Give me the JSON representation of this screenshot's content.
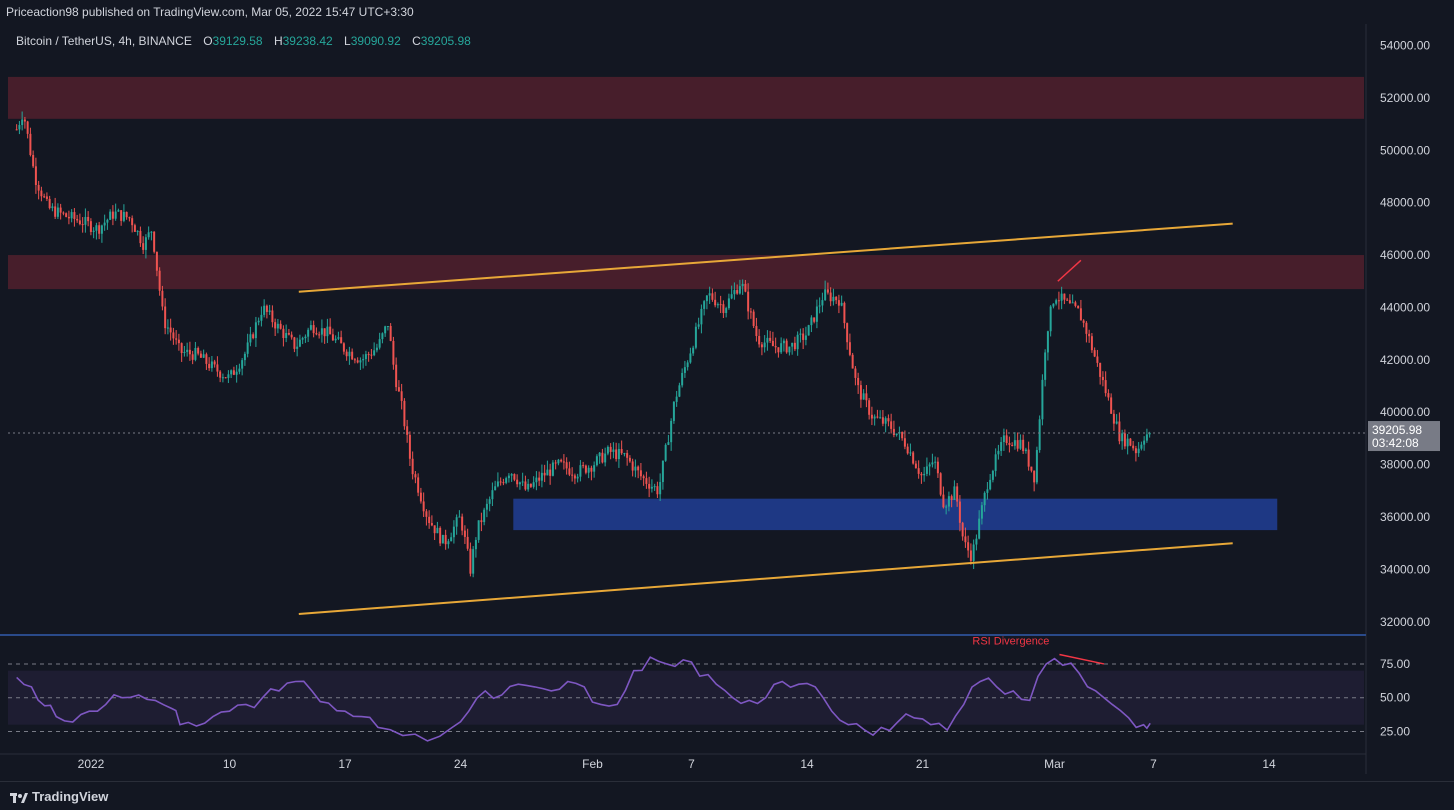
{
  "header": {
    "published": "Priceaction98 published on TradingView.com, Mar 05, 2022 15:47 UTC+3:30"
  },
  "symbol": {
    "name": "Bitcoin / TetherUS, 4h, BINANCE",
    "open_label": "O",
    "open": "39129.58",
    "high_label": "H",
    "high": "39238.42",
    "low_label": "L",
    "low": "39090.92",
    "close_label": "C",
    "close": "39205.98"
  },
  "last_price": {
    "price": "39205.98",
    "countdown": "03:42:08"
  },
  "footer": {
    "brand": "TradingView"
  },
  "colors": {
    "background": "#131722",
    "up": "#26a69a",
    "down": "#ef5350",
    "resistance_zone": "#4a1f2c",
    "support_zone": "#1f3a8a",
    "channel": "#e8a838",
    "rsi": "#7e57c2",
    "annotation": "#f23645"
  },
  "chart_data": [
    {
      "type": "candlestick",
      "title": "Bitcoin / TetherUS, 4h, BINANCE",
      "ylim": [
        31000,
        54400
      ],
      "y_ticks": [
        32000,
        34000,
        36000,
        38000,
        40000,
        42000,
        44000,
        46000,
        48000,
        50000,
        52000,
        54000
      ],
      "y_tick_labels": [
        "32000.00",
        "34000.00",
        "36000.00",
        "38000.00",
        "40000.00",
        "42000.00",
        "44000.00",
        "46000.00",
        "48000.00",
        "50000.00",
        "52000.00",
        "54000.00"
      ],
      "x_tick_labels": [
        "2022",
        "10",
        "17",
        "24",
        "Feb",
        "7",
        "14",
        "21",
        "Mar",
        "7",
        "14"
      ],
      "x_tick_days": [
        0,
        9,
        16,
        23,
        31,
        37,
        44,
        51,
        59,
        65,
        72
      ],
      "price_path_days": [
        -3.9,
        -3.5,
        -2.8,
        -2.0,
        -1.0,
        0.0,
        1.0,
        2.0,
        3.0,
        3.8,
        4.3,
        5.0,
        5.5,
        6.0,
        7.0,
        8.0,
        9.0,
        10.0,
        11.0,
        12.0,
        13.0,
        14.0,
        15.0,
        16.0,
        17.0,
        18.0,
        18.6,
        19.0,
        19.5,
        20.0,
        21.0,
        22.0,
        23.0,
        23.6,
        24.0,
        25.0,
        26.0,
        27.0,
        28.0,
        29.0,
        30.0,
        31.0,
        32.0,
        33.0,
        34.0,
        35.0,
        36.0,
        37.0,
        38.0,
        39.0,
        40.0,
        41.0,
        42.0,
        43.0,
        44.0,
        45.0,
        46.0,
        47.0,
        48.0,
        49.0,
        50.0,
        51.0,
        51.7,
        52.3,
        53.0,
        53.5,
        54.0,
        55.0,
        56.0,
        57.0,
        57.8,
        58.5,
        59.0,
        59.6,
        60.0,
        60.5,
        61.0,
        61.5,
        62.0,
        62.5,
        63.0,
        63.5,
        64.0,
        64.4,
        64.8
      ],
      "price_path_values": [
        50800,
        51500,
        49000,
        47800,
        47500,
        47300,
        47000,
        47600,
        47400,
        46400,
        47000,
        43500,
        43000,
        42300,
        42200,
        41700,
        41300,
        42300,
        44000,
        43200,
        42500,
        43300,
        43000,
        42400,
        42000,
        42500,
        43400,
        41500,
        40000,
        38000,
        36000,
        35000,
        36000,
        34000,
        35500,
        37000,
        37800,
        37000,
        37600,
        38000,
        37700,
        38000,
        38500,
        38300,
        37500,
        37000,
        40500,
        42500,
        44500,
        44000,
        45000,
        42800,
        42500,
        42500,
        43000,
        44500,
        44300,
        41000,
        39800,
        39500,
        38800,
        37500,
        38200,
        36500,
        37000,
        35000,
        34500,
        37500,
        39000,
        38800,
        37500,
        43000,
        44500,
        44200,
        44000,
        43800,
        43000,
        42000,
        41000,
        40000,
        39000,
        38900,
        38500,
        39100,
        39206
      ],
      "resistance_zones": [
        [
          51200,
          52800
        ],
        [
          44700,
          46000
        ]
      ],
      "support_zone": [
        35500,
        36700
      ],
      "support_zone_days": [
        26.2,
        72.5
      ],
      "channel_upper": {
        "from_day": 13.2,
        "from_value": 44600,
        "to_day": 69.8,
        "to_value": 47200
      },
      "channel_lower": {
        "from_day": 13.2,
        "from_value": 32300,
        "to_day": 69.8,
        "to_value": 35000
      },
      "divergence_price_line": {
        "from_day": 59.2,
        "from_value": 45000,
        "to_day": 60.6,
        "to_value": 45800
      }
    },
    {
      "type": "line",
      "series": [
        {
          "name": "RSI",
          "values": [
            65,
            58,
            44,
            36,
            32,
            40,
            45,
            50,
            52,
            48,
            42,
            30,
            29,
            36,
            40,
            45,
            50,
            55,
            62,
            55,
            46,
            40,
            36,
            28,
            22,
            18,
            28,
            40,
            55,
            52,
            60,
            58,
            55,
            62,
            58,
            45,
            45,
            70,
            80,
            75,
            78,
            66,
            60,
            50,
            48,
            50,
            62,
            60,
            58,
            40,
            30,
            26,
            28,
            32,
            35,
            30,
            26,
            45,
            62,
            58,
            55,
            48,
            75,
            74,
            68,
            55,
            45,
            35,
            30,
            31
          ]
        }
      ],
      "x_days": [
        -3.9,
        -3.0,
        -2.2,
        -1.5,
        -0.5,
        0.5,
        1.5,
        2.5,
        3.5,
        4.5,
        5.5,
        6.0,
        7.0,
        8.0,
        9.0,
        10.0,
        11.0,
        12.0,
        13.0,
        14.0,
        15.0,
        16.0,
        17.0,
        18.0,
        19.5,
        21.0,
        22.5,
        23.5,
        24.5,
        25.5,
        26.5,
        27.5,
        28.5,
        29.5,
        30.5,
        31.5,
        32.5,
        33.5,
        34.5,
        35.5,
        36.5,
        37.5,
        38.5,
        39.5,
        40.5,
        41.5,
        42.5,
        43.5,
        44.5,
        45.5,
        46.5,
        47.5,
        48.5,
        49.5,
        50.5,
        51.5,
        52.5,
        53.5,
        54.5,
        55.5,
        56.5,
        57.5,
        58.5,
        59.5,
        60.5,
        61.5,
        62.5,
        63.5,
        64.4,
        64.8
      ],
      "ylim": [
        12,
        92
      ],
      "y_ticks": [
        25,
        50,
        75
      ],
      "y_tick_labels": [
        "25.00",
        "50.00",
        "75.00"
      ],
      "band": [
        30,
        70
      ],
      "annotation": "RSI Divergence",
      "divergence_rsi_line": {
        "from_day": 59.3,
        "from_value": 82,
        "to_day": 62.0,
        "to_value": 75
      }
    }
  ]
}
